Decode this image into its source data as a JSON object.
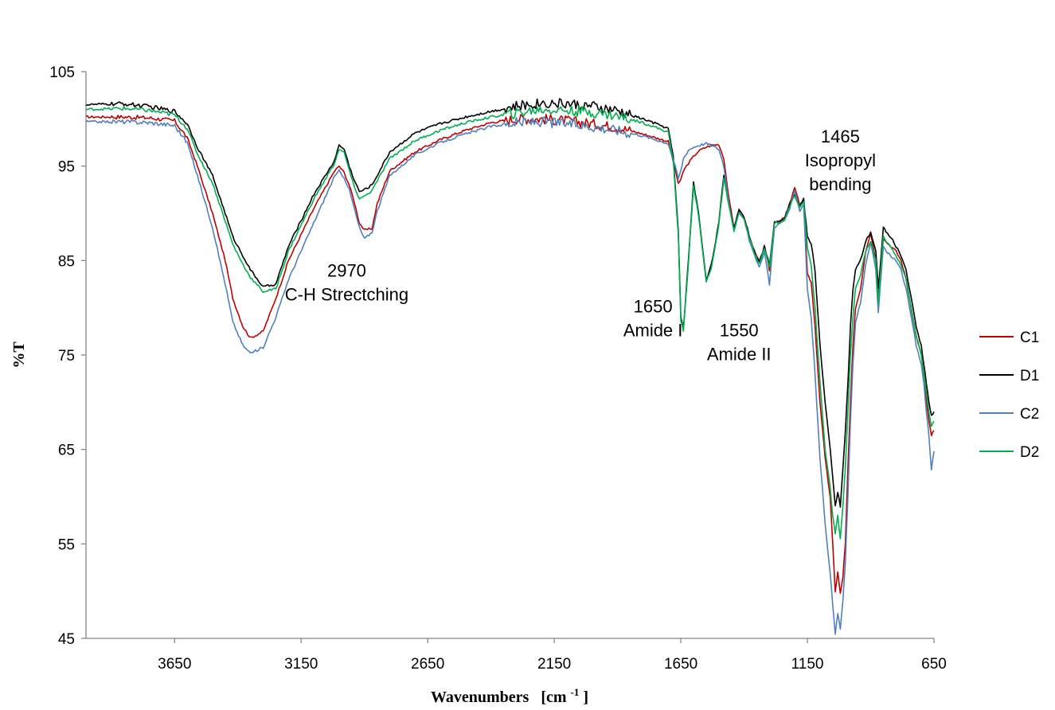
{
  "chart_data": {
    "type": "line",
    "xlabel": "Wavenumbers",
    "xlabel_unit_prefix": "[cm",
    "xlabel_unit_sup": "-1",
    "xlabel_unit_suffix": "]",
    "ylabel": "%T",
    "xlim": [
      4000,
      650
    ],
    "x_reversed": true,
    "ylim": [
      45,
      105
    ],
    "xticks": [
      3650,
      3150,
      2650,
      2150,
      1650,
      1150,
      650
    ],
    "yticks": [
      45,
      55,
      65,
      75,
      85,
      95,
      105
    ],
    "grid": false,
    "legend_position": "right",
    "annotations": [
      {
        "lines": [
          "2970",
          "C-H Strectching"
        ],
        "x": 2970,
        "y": 83.3
      },
      {
        "lines": [
          "1650",
          "Amide I"
        ],
        "x": 1760,
        "y": 79.5
      },
      {
        "lines": [
          "1550",
          "Amide II"
        ],
        "x": 1420,
        "y": 77
      },
      {
        "lines": [
          "1465",
          "Isopropyl",
          "bending"
        ],
        "x": 1020,
        "y": 97.5
      }
    ],
    "series": [
      {
        "name": "C1",
        "color": "#C00000",
        "x": [
          4000,
          3850,
          3750,
          3650,
          3600,
          3560,
          3500,
          3450,
          3420,
          3380,
          3350,
          3300,
          3250,
          3200,
          3100,
          3020,
          3000,
          2980,
          2960,
          2940,
          2920,
          2900,
          2870,
          2850,
          2800,
          2700,
          2600,
          2500,
          2400,
          2300,
          2200,
          2100,
          2000,
          1900,
          1800,
          1700,
          1680,
          1660,
          1650,
          1640,
          1620,
          1600,
          1580,
          1550,
          1530,
          1500,
          1480,
          1460,
          1440,
          1420,
          1400,
          1380,
          1360,
          1340,
          1320,
          1300,
          1280,
          1260,
          1240,
          1220,
          1200,
          1180,
          1165,
          1150,
          1135,
          1120,
          1100,
          1080,
          1060,
          1050,
          1040,
          1030,
          1020,
          1010,
          1000,
          990,
          980,
          970,
          960,
          940,
          920,
          900,
          880,
          870,
          860,
          850,
          840,
          820,
          800,
          780,
          760,
          740,
          720,
          700,
          690,
          680,
          670,
          660,
          650
        ],
        "y": [
          100.2,
          100.2,
          100.1,
          99.8,
          98,
          95,
          90,
          85,
          81,
          78,
          76.8,
          77.5,
          81,
          85,
          90.5,
          94.4,
          95,
          94.3,
          93,
          91.2,
          89,
          88.2,
          88.4,
          91,
          94.5,
          96.5,
          97.8,
          98.8,
          99.6,
          100,
          100,
          99.8,
          99.5,
          99.1,
          98.4,
          97.6,
          95.5,
          93.2,
          93.5,
          94.5,
          95.3,
          96,
          96.6,
          97,
          97.2,
          97.3,
          95.8,
          91.5,
          88.5,
          90.4,
          89.6,
          87.5,
          86,
          84.8,
          86.5,
          84,
          89.2,
          89.2,
          89.5,
          91,
          92.7,
          90.8,
          91.5,
          83.5,
          82.8,
          78,
          70,
          64,
          60,
          55,
          50,
          52,
          49.7,
          51.5,
          55,
          63,
          70,
          76,
          80,
          82,
          86,
          88,
          85,
          81,
          84,
          87.5,
          87,
          86.5,
          86,
          85,
          83,
          80,
          77,
          75,
          73,
          70,
          68,
          66.5,
          67
        ],
        "y_offset_pct": 0
      },
      {
        "name": "D1",
        "color": "#000000",
        "x": [
          4000,
          3850,
          3750,
          3650,
          3600,
          3560,
          3500,
          3450,
          3420,
          3380,
          3350,
          3300,
          3250,
          3200,
          3100,
          3020,
          3000,
          2980,
          2960,
          2940,
          2920,
          2900,
          2870,
          2850,
          2800,
          2700,
          2600,
          2500,
          2400,
          2300,
          2200,
          2100,
          2000,
          1900,
          1800,
          1700,
          1680,
          1660,
          1650,
          1640,
          1620,
          1600,
          1580,
          1550,
          1530,
          1500,
          1480,
          1460,
          1440,
          1420,
          1400,
          1380,
          1360,
          1340,
          1320,
          1300,
          1280,
          1260,
          1240,
          1220,
          1200,
          1180,
          1165,
          1150,
          1135,
          1120,
          1100,
          1080,
          1060,
          1050,
          1040,
          1030,
          1020,
          1010,
          1000,
          990,
          980,
          970,
          960,
          940,
          920,
          900,
          880,
          870,
          860,
          850,
          840,
          820,
          800,
          780,
          760,
          740,
          720,
          700,
          690,
          680,
          670,
          660,
          650
        ],
        "y": [
          101.5,
          101.6,
          101.3,
          100.8,
          99.5,
          97,
          94,
          90,
          87.5,
          85.5,
          84,
          82.2,
          82.5,
          86.5,
          92,
          95.5,
          97.2,
          96.8,
          95,
          93.5,
          92.3,
          92.5,
          93,
          94,
          96.5,
          98.5,
          99.5,
          100.2,
          100.8,
          101.3,
          101.7,
          101.6,
          101.3,
          100.8,
          100,
          99,
          96,
          88,
          79,
          77.8,
          85,
          93.3,
          90,
          83,
          84.5,
          89,
          94,
          91,
          88.5,
          90.4,
          89.6,
          87.7,
          86,
          84.8,
          86.5,
          84.5,
          89.2,
          89.2,
          89.5,
          91,
          92,
          90.8,
          91.5,
          87.5,
          86.8,
          84,
          76,
          70,
          65,
          62,
          59,
          60.5,
          59,
          63,
          67,
          72,
          78,
          82,
          84,
          85,
          87,
          88,
          86,
          82,
          85,
          88.6,
          88,
          87.5,
          86.5,
          85.5,
          84,
          81,
          78,
          76,
          74,
          72,
          70,
          68.5,
          69
        ],
        "y_offset_pct": 0
      },
      {
        "name": "C2",
        "color": "#4F81BD",
        "x": [
          4000,
          3850,
          3750,
          3650,
          3600,
          3560,
          3500,
          3450,
          3420,
          3380,
          3350,
          3300,
          3250,
          3200,
          3100,
          3020,
          3000,
          2980,
          2960,
          2940,
          2920,
          2900,
          2870,
          2850,
          2800,
          2700,
          2600,
          2500,
          2400,
          2300,
          2200,
          2100,
          2000,
          1900,
          1800,
          1700,
          1680,
          1660,
          1650,
          1640,
          1620,
          1600,
          1580,
          1550,
          1530,
          1500,
          1480,
          1460,
          1440,
          1420,
          1400,
          1380,
          1360,
          1340,
          1320,
          1300,
          1280,
          1260,
          1240,
          1220,
          1200,
          1180,
          1165,
          1150,
          1135,
          1120,
          1100,
          1080,
          1060,
          1050,
          1040,
          1030,
          1020,
          1010,
          1000,
          990,
          980,
          970,
          960,
          940,
          920,
          900,
          880,
          870,
          860,
          850,
          840,
          820,
          800,
          780,
          760,
          740,
          720,
          700,
          690,
          680,
          670,
          660,
          650
        ],
        "y": [
          99.7,
          99.7,
          99.6,
          99.3,
          97.5,
          94,
          88.5,
          82.5,
          78.5,
          76,
          75.2,
          75.8,
          79,
          83,
          89,
          93.8,
          94.5,
          93.8,
          92.5,
          90.5,
          88.5,
          87.3,
          88,
          90.2,
          94,
          96.2,
          97.5,
          98.4,
          99.2,
          99.6,
          99.7,
          99.5,
          99.2,
          98.8,
          98.2,
          97.4,
          95.7,
          93.7,
          94.5,
          95.8,
          96.7,
          97,
          97.2,
          97.4,
          97.2,
          96.8,
          95,
          91,
          88.2,
          90.2,
          89.3,
          87.2,
          85.6,
          84.2,
          86,
          82.5,
          88.6,
          88.9,
          89.3,
          90.5,
          92.3,
          90.3,
          91,
          82,
          79,
          73,
          64,
          57,
          52,
          48.5,
          45.5,
          47.5,
          46,
          49,
          53,
          60,
          68,
          74,
          78.5,
          80.5,
          84.5,
          87,
          84,
          79.5,
          83,
          86.5,
          86,
          85.5,
          85,
          84,
          82,
          79,
          76,
          74,
          72,
          69,
          66.5,
          62.8,
          64.8
        ],
        "y_offset_pct": 0
      },
      {
        "name": "D2",
        "color": "#00B050",
        "x": [
          4000,
          3850,
          3750,
          3650,
          3600,
          3560,
          3500,
          3450,
          3420,
          3380,
          3350,
          3300,
          3250,
          3200,
          3100,
          3020,
          3000,
          2980,
          2960,
          2940,
          2920,
          2900,
          2870,
          2850,
          2800,
          2700,
          2600,
          2500,
          2400,
          2300,
          2200,
          2100,
          2000,
          1900,
          1800,
          1700,
          1680,
          1660,
          1650,
          1640,
          1620,
          1600,
          1580,
          1550,
          1530,
          1500,
          1480,
          1460,
          1440,
          1420,
          1400,
          1380,
          1360,
          1340,
          1320,
          1300,
          1280,
          1260,
          1240,
          1220,
          1200,
          1180,
          1165,
          1150,
          1135,
          1120,
          1100,
          1080,
          1060,
          1050,
          1040,
          1030,
          1020,
          1010,
          1000,
          990,
          980,
          970,
          960,
          940,
          920,
          900,
          880,
          870,
          860,
          850,
          840,
          820,
          800,
          780,
          760,
          740,
          720,
          700,
          690,
          680,
          670,
          660,
          650
        ],
        "y": [
          101,
          101.1,
          100.9,
          100.4,
          99,
          96.3,
          93.2,
          89.2,
          86.7,
          84.6,
          83.2,
          81.7,
          82,
          86,
          91.5,
          95.2,
          96.8,
          96.4,
          94.6,
          92.7,
          91.6,
          91.8,
          92.4,
          93.4,
          95.8,
          97.7,
          98.8,
          99.6,
          100.2,
          100.6,
          101,
          100.9,
          100.7,
          100.3,
          99.6,
          98.6,
          95.6,
          87.6,
          78.7,
          77.5,
          84.7,
          93,
          89.7,
          82.7,
          84.2,
          88.7,
          93.7,
          90.7,
          88.2,
          90.1,
          89.3,
          87.5,
          85.8,
          84.6,
          86.3,
          84.3,
          89,
          89,
          89.3,
          90.8,
          91.8,
          90.6,
          91.3,
          86.5,
          84.5,
          80,
          72,
          65,
          61,
          58,
          56,
          58,
          55.5,
          59,
          63,
          69,
          75,
          79,
          82,
          83.5,
          86,
          87,
          85,
          80.5,
          84,
          87.6,
          87,
          86.5,
          85.5,
          84.5,
          83,
          80,
          77,
          75,
          73,
          71,
          69,
          67.5,
          68
        ],
        "y_offset_pct": 0
      }
    ]
  }
}
